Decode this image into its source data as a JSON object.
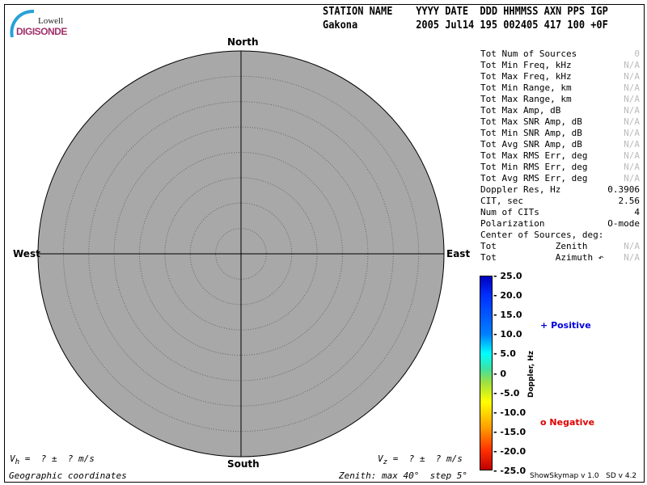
{
  "logo": {
    "line1": "Lowell",
    "line2": "DIGISONDE"
  },
  "header": {
    "labels": "STATION NAME    YYYY DATE  DDD HHMMSS AXN PPS IGP",
    "values": "Gakona          2005 Jul14 195 002405 417 100 +0F"
  },
  "skymap": {
    "north": "North",
    "south": "South",
    "east": "East",
    "west": "West",
    "background": "#a8a8a8",
    "zenith_max_deg": 40,
    "zenith_step_deg": 5
  },
  "stats": [
    {
      "label": "Tot Num of Sources",
      "value": "0",
      "na": true
    },
    {
      "label": "Tot Min Freq, kHz",
      "value": "N/A",
      "na": true
    },
    {
      "label": "Tot Max Freq, kHz",
      "value": "N/A",
      "na": true
    },
    {
      "label": "Tot Min Range, km",
      "value": "N/A",
      "na": true
    },
    {
      "label": "Tot Max Range, km",
      "value": "N/A",
      "na": true
    },
    {
      "label": "Tot Max Amp, dB",
      "value": "N/A",
      "na": true
    },
    {
      "label": "Tot Max SNR Amp, dB",
      "value": "N/A",
      "na": true
    },
    {
      "label": "Tot Min SNR Amp, dB",
      "value": "N/A",
      "na": true
    },
    {
      "label": "Tot Avg SNR Amp, dB",
      "value": "N/A",
      "na": true
    },
    {
      "label": "Tot Max RMS Err, deg",
      "value": "N/A",
      "na": true
    },
    {
      "label": "Tot Min RMS Err, deg",
      "value": "N/A",
      "na": true
    },
    {
      "label": "Tot Avg RMS Err, deg",
      "value": "N/A",
      "na": true
    },
    {
      "label": "Doppler Res, Hz",
      "value": "0.3906",
      "na": false
    },
    {
      "label": "CIT, sec",
      "value": "2.56",
      "na": false
    },
    {
      "label": "Num of CITs",
      "value": "4",
      "na": false
    },
    {
      "label": "Polarization",
      "value": "O-mode",
      "na": false
    },
    {
      "label": "Center of Sources, deg:",
      "value": "",
      "na": false
    },
    {
      "label": "Tot           Zenith",
      "value": "N/A",
      "na": true
    },
    {
      "label": "Tot           Azimuth ↶",
      "value": "N/A",
      "na": true
    }
  ],
  "colorbar": {
    "label": "Doppler, Hz",
    "ticks": [
      "25.0",
      "20.0",
      "15.0",
      "10.0",
      "5.0",
      "0",
      "-5.0",
      "-10.0",
      "-15.0",
      "-20.0",
      "-25.0"
    ]
  },
  "legend": {
    "positive": "Positive",
    "positive_symbol": "+",
    "positive_color": "#0000e0",
    "negative": "Negative",
    "negative_symbol": "o",
    "negative_color": "#e00000"
  },
  "footer": {
    "vh": "V",
    "vh_sub": "h",
    "vh_rest": " =  ? ±  ? m/s",
    "vz": "V",
    "vz_sub": "z",
    "vz_rest": " =  ? ±  ? m/s",
    "coords": "Geographic coordinates",
    "zenith": "Zenith: max 40°  step 5°",
    "version": "ShowSkymap v 1.0   SD v 4.2"
  }
}
